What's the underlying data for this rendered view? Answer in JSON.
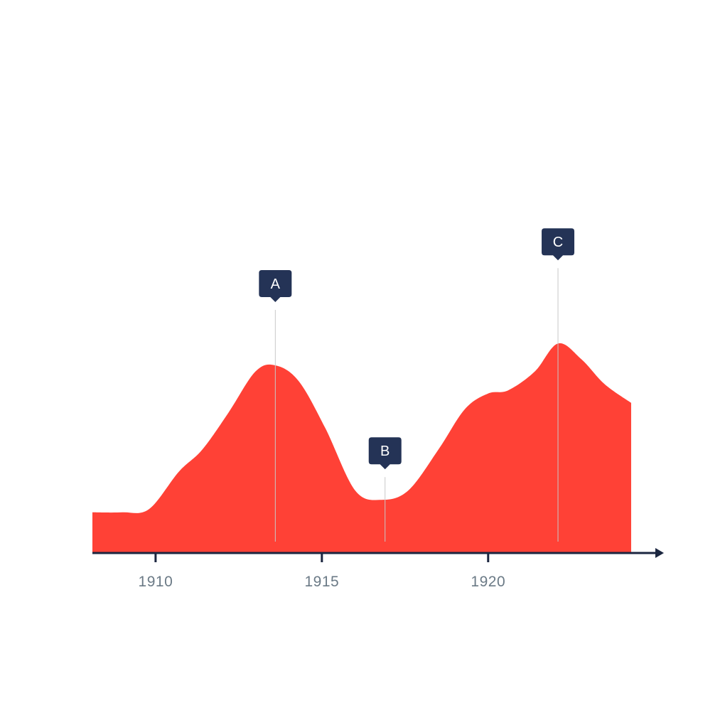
{
  "chart_data": {
    "type": "area",
    "xlim": [
      1908.1,
      1924.6
    ],
    "ylim": [
      0,
      100
    ],
    "x": [
      1908.1,
      1909.0,
      1909.8,
      1910.7,
      1911.4,
      1912.2,
      1913.0,
      1913.6,
      1914.3,
      1915.1,
      1916.0,
      1916.8,
      1917.6,
      1918.5,
      1919.3,
      1920.0,
      1920.6,
      1921.4,
      1922.1,
      1922.8,
      1923.5,
      1924.3
    ],
    "values": [
      13,
      13,
      14,
      26,
      33,
      45,
      58,
      60,
      55,
      40,
      20,
      17,
      20,
      33,
      46,
      51,
      52,
      58,
      67,
      62,
      54,
      48
    ],
    "series": [
      {
        "values": [
          13,
          13,
          14,
          26,
          33,
          45,
          58,
          60,
          55,
          40,
          20,
          17,
          20,
          33,
          46,
          51,
          52,
          58,
          67,
          62,
          54,
          48
        ]
      }
    ],
    "xticks": [
      1910,
      1915,
      1920
    ],
    "tick_labels": [
      "1910",
      "1915",
      "1920"
    ],
    "annotations": [
      {
        "label": "A",
        "x": 1913.6,
        "y": 60,
        "height": 96
      },
      {
        "label": "B",
        "x": 1916.9,
        "y": 17,
        "height": 50
      },
      {
        "label": "C",
        "x": 1922.1,
        "y": 67,
        "height": 124
      }
    ],
    "colors": {
      "area": "#ff4136",
      "axis": "#1b2640",
      "marker": "#243356",
      "marker_text": "#ffffff",
      "guide": "#c8c8c8",
      "tick_text": "#6b7a86"
    },
    "grid": false
  }
}
